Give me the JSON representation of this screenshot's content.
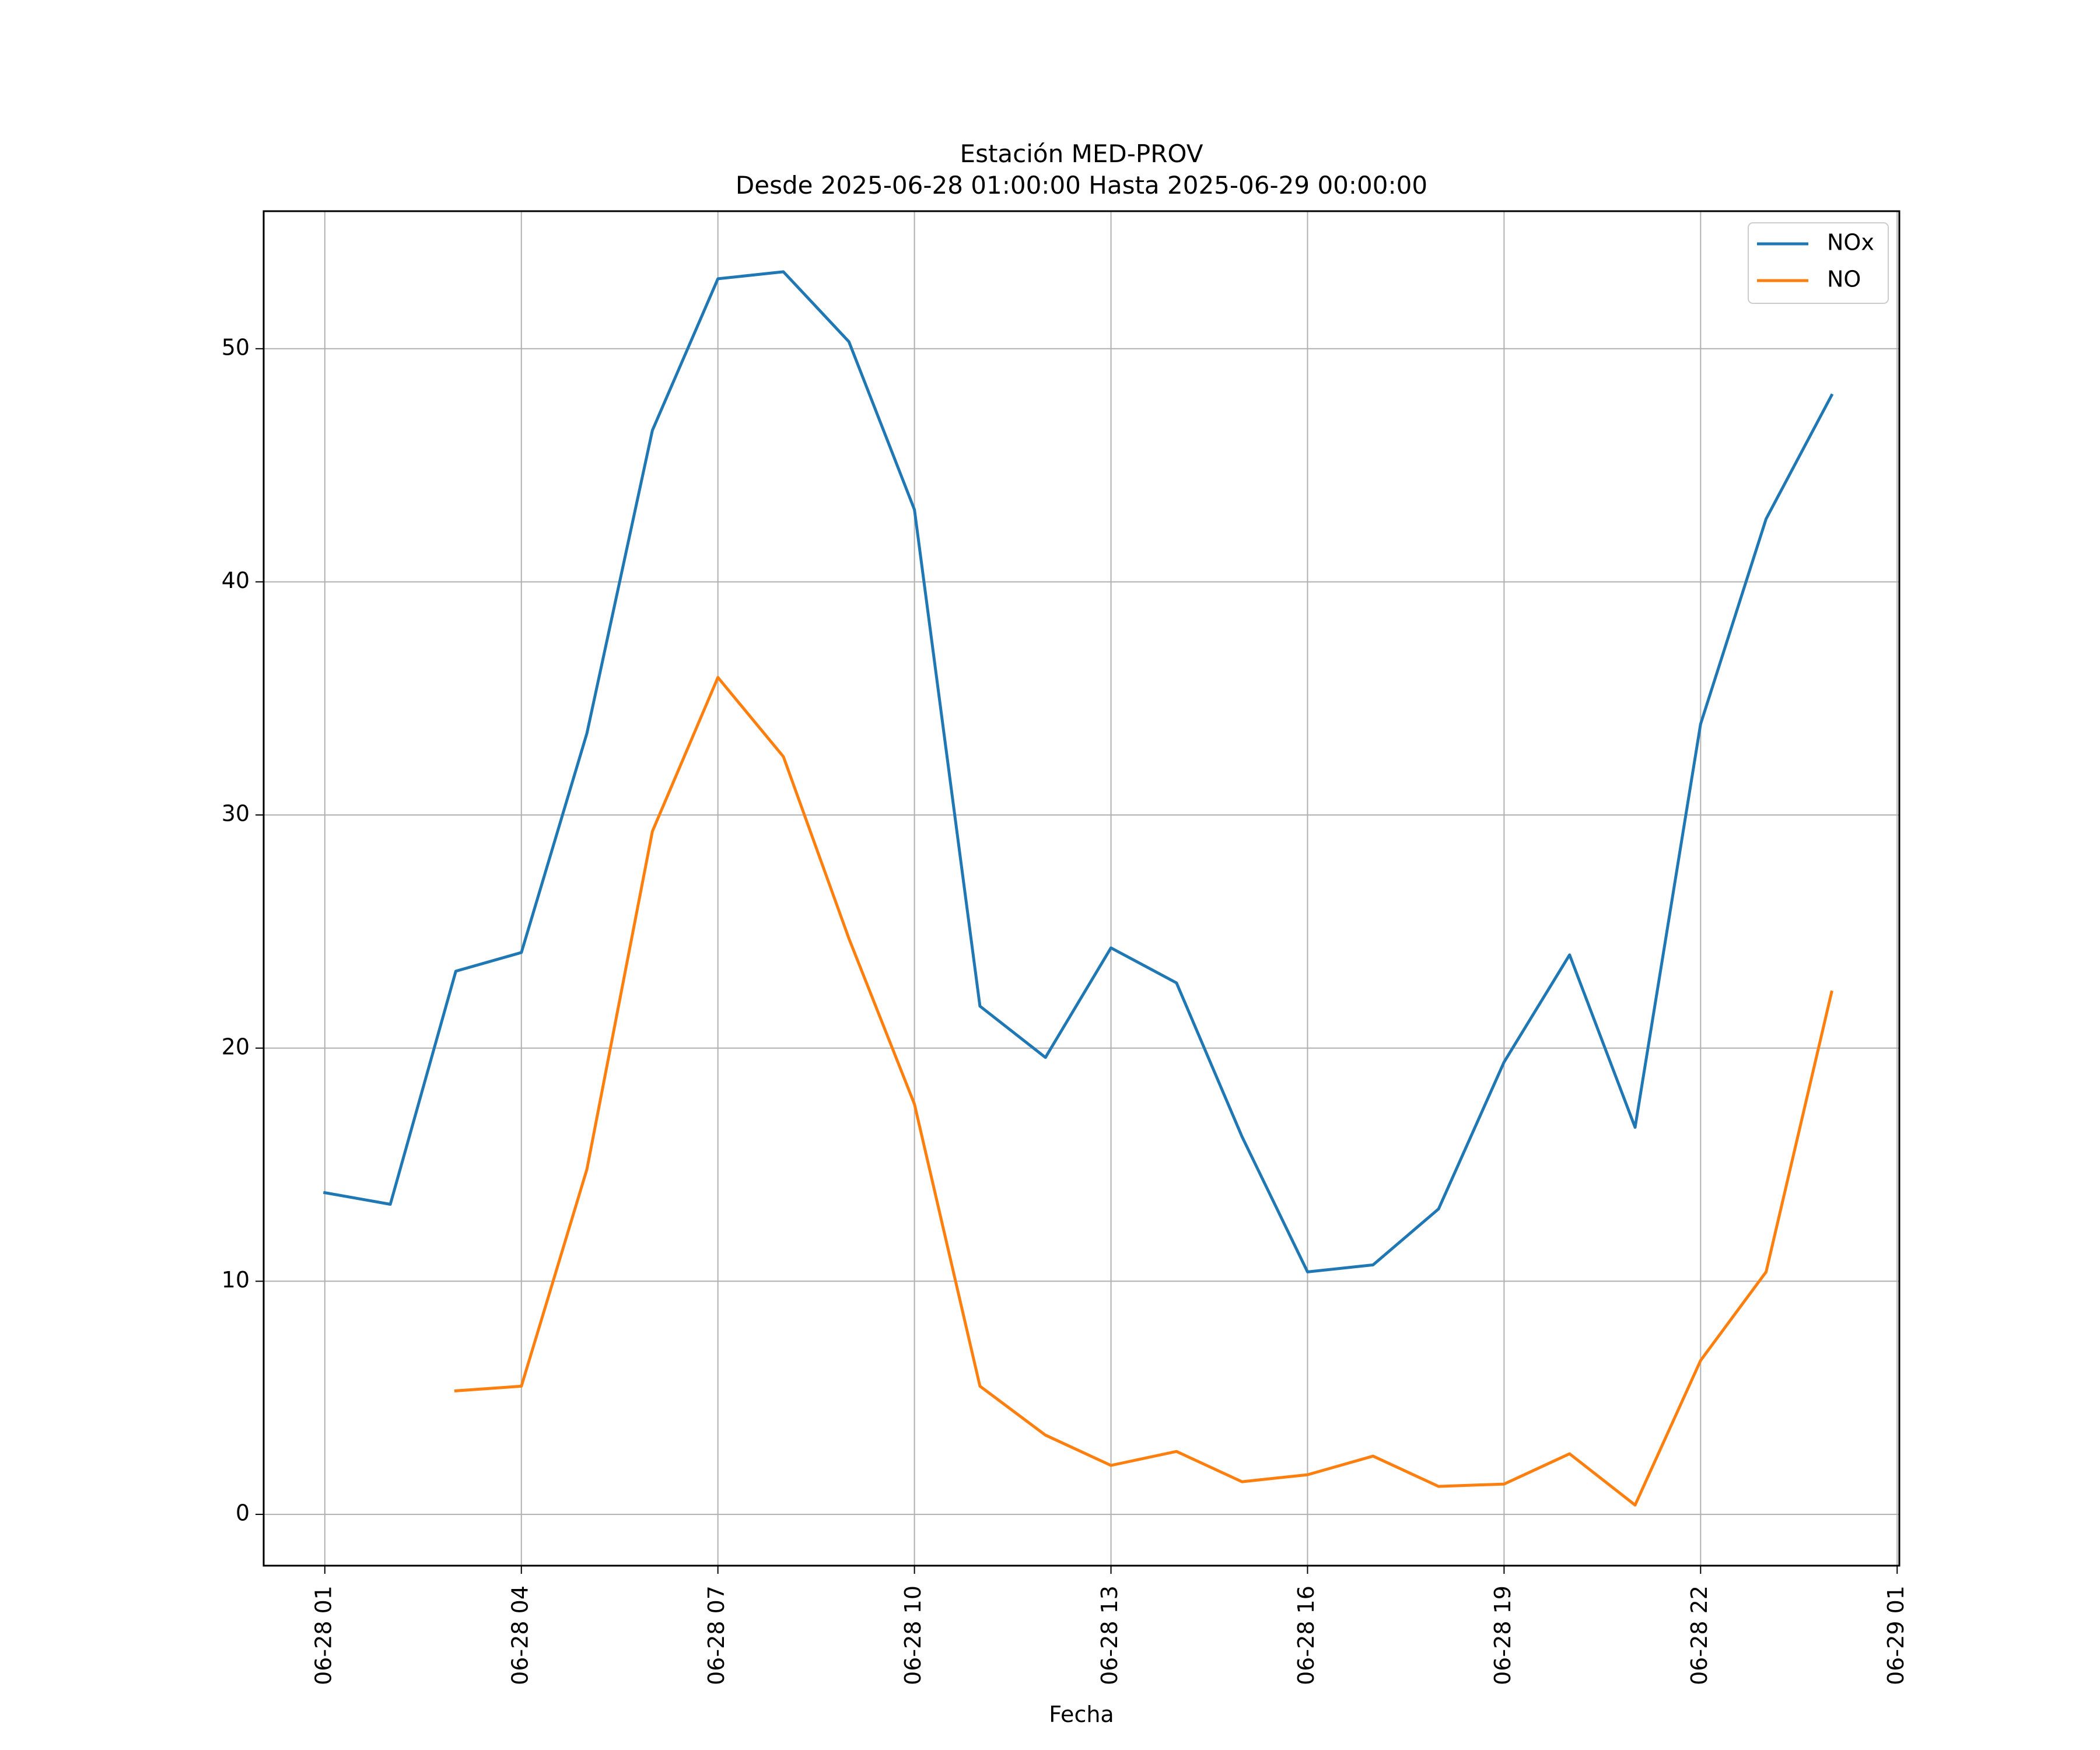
{
  "chart_data": {
    "type": "line",
    "title": "Estación MED-PROV",
    "subtitle": "Desde 2025-06-28 01:00:00 Hasta 2025-06-29 00:00:00",
    "xlabel": "Fecha",
    "ylabel": "",
    "x_ticks": [
      "06-28 01",
      "06-28 04",
      "06-28 07",
      "06-28 10",
      "06-28 13",
      "06-28 16",
      "06-28 19",
      "06-28 22",
      "06-29 01"
    ],
    "x_range": [
      "2025-06-28 00:04",
      "2025-06-29 01:02"
    ],
    "y_ticks": [
      0,
      10,
      20,
      30,
      40,
      50
    ],
    "ylim": [
      -2.2,
      55.9
    ],
    "grid": true,
    "legend_position": "top-right",
    "x": [
      "2025-06-28 01:00",
      "2025-06-28 02:00",
      "2025-06-28 03:00",
      "2025-06-28 04:00",
      "2025-06-28 05:00",
      "2025-06-28 06:00",
      "2025-06-28 07:00",
      "2025-06-28 08:00",
      "2025-06-28 09:00",
      "2025-06-28 10:00",
      "2025-06-28 11:00",
      "2025-06-28 12:00",
      "2025-06-28 13:00",
      "2025-06-28 14:00",
      "2025-06-28 15:00",
      "2025-06-28 16:00",
      "2025-06-28 17:00",
      "2025-06-28 18:00",
      "2025-06-28 19:00",
      "2025-06-28 20:00",
      "2025-06-28 21:00",
      "2025-06-28 22:00",
      "2025-06-28 23:00",
      "2025-06-29 00:00"
    ],
    "series": [
      {
        "name": "NOx",
        "color": "#1f77b4",
        "values": [
          13.8,
          13.3,
          23.3,
          24.1,
          33.5,
          46.5,
          53.0,
          53.3,
          50.3,
          43.1,
          21.8,
          19.6,
          24.3,
          22.8,
          16.2,
          10.4,
          10.7,
          13.1,
          19.4,
          24.0,
          16.6,
          33.9,
          42.7,
          48.0
        ]
      },
      {
        "name": "NO",
        "color": "#ff7f0e",
        "values": [
          null,
          null,
          5.3,
          5.5,
          14.8,
          29.3,
          35.9,
          32.5,
          24.7,
          17.6,
          5.5,
          3.4,
          2.1,
          2.7,
          1.4,
          1.7,
          2.5,
          1.2,
          1.3,
          2.6,
          0.4,
          6.6,
          10.4,
          22.4
        ]
      }
    ]
  }
}
